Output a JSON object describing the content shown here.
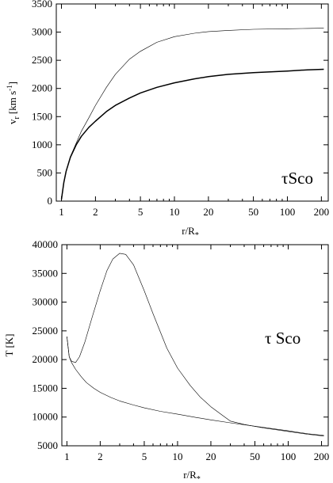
{
  "chart_data": [
    {
      "type": "line",
      "xscale": "log",
      "xlim": [
        0.9,
        230
      ],
      "ylim": [
        0,
        3500
      ],
      "xticks": [
        1,
        2,
        5,
        10,
        20,
        50,
        100,
        200
      ],
      "yticks": [
        0,
        500,
        1000,
        1500,
        2000,
        2500,
        3000,
        3500
      ],
      "xlabel": "r/R",
      "xlabel_sub": "*",
      "ylabel": "v",
      "ylabel_sub": "r",
      "ylabel_unit": "[km s",
      "ylabel_sup": "-1",
      "ylabel_close": "]",
      "annotation": "τSco",
      "grid": false,
      "series": [
        {
          "style": "thin",
          "x": [
            1.0,
            1.05,
            1.1,
            1.2,
            1.35,
            1.5,
            1.75,
            2,
            2.5,
            3,
            4,
            5,
            7,
            10,
            15,
            20,
            30,
            50,
            100,
            150,
            210
          ],
          "values": [
            30,
            310,
            520,
            790,
            1030,
            1240,
            1480,
            1700,
            2020,
            2250,
            2520,
            2660,
            2820,
            2920,
            2980,
            3010,
            3030,
            3050,
            3060,
            3065,
            3070
          ]
        },
        {
          "style": "thick",
          "x": [
            1.0,
            1.05,
            1.1,
            1.2,
            1.35,
            1.5,
            1.75,
            2,
            2.5,
            3,
            4,
            5,
            7,
            10,
            15,
            20,
            30,
            50,
            100,
            150,
            210
          ],
          "values": [
            30,
            330,
            530,
            780,
            1000,
            1150,
            1310,
            1420,
            1590,
            1700,
            1830,
            1920,
            2020,
            2100,
            2170,
            2210,
            2250,
            2280,
            2310,
            2330,
            2340
          ]
        }
      ]
    },
    {
      "type": "line",
      "xscale": "log",
      "xlim": [
        0.9,
        230
      ],
      "ylim": [
        5000,
        40000
      ],
      "xticks": [
        1,
        2,
        5,
        10,
        20,
        50,
        100,
        200
      ],
      "yticks": [
        5000,
        10000,
        15000,
        20000,
        25000,
        30000,
        35000,
        40000
      ],
      "xlabel": "r/R",
      "xlabel_sub": "*",
      "ylabel": "T [K]",
      "annotation": "τ Sco",
      "grid": false,
      "series": [
        {
          "style": "thin",
          "x": [
            1.0,
            1.05,
            1.1,
            1.2,
            1.3,
            1.45,
            1.7,
            2,
            2.3,
            2.6,
            3,
            3.4,
            4,
            5,
            6,
            8,
            10,
            13,
            16,
            20,
            25,
            30,
            40,
            60,
            100,
            150,
            210
          ],
          "values": [
            24000,
            20500,
            19700,
            19500,
            20500,
            23000,
            27500,
            32000,
            35500,
            37500,
            38500,
            38300,
            36500,
            32000,
            28000,
            22000,
            18500,
            15500,
            13500,
            11800,
            10400,
            9300,
            8700,
            8100,
            7500,
            7000,
            6700
          ]
        },
        {
          "style": "thin",
          "x": [
            1.0,
            1.05,
            1.1,
            1.2,
            1.35,
            1.5,
            1.75,
            2,
            2.5,
            3,
            4,
            5,
            7,
            10,
            15,
            20,
            30,
            50,
            100,
            150,
            210
          ],
          "values": [
            24000,
            20500,
            19500,
            18300,
            17000,
            16000,
            15000,
            14300,
            13400,
            12800,
            12100,
            11600,
            11000,
            10500,
            9900,
            9500,
            9000,
            8400,
            7600,
            7100,
            6800
          ]
        }
      ]
    }
  ]
}
